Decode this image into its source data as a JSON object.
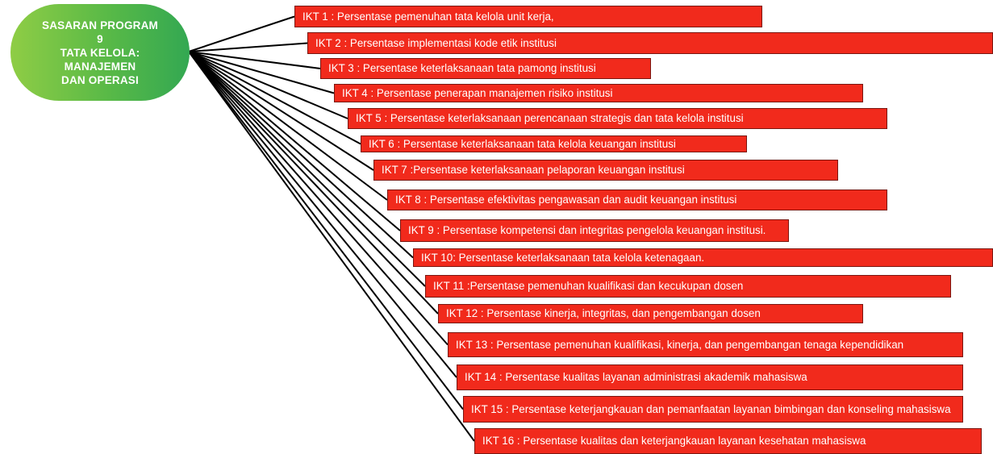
{
  "root": {
    "lines": [
      "SASARAN PROGRAM",
      "9",
      "TATA KELOLA:",
      "MANAJEMEN",
      "DAN OPERASI"
    ]
  },
  "items": [
    "IKT 1 : Persentase pemenuhan tata kelola unit kerja,",
    "IKT 2 : Persentase implementasi kode etik institusi",
    "IKT 3 : Persentase keterlaksanaan tata pamong institusi",
    "IKT 4 : Persentase penerapan manajemen risiko institusi",
    "IKT 5 : Persentase keterlaksanaan perencanaan strategis dan tata kelola institusi",
    "IKT 6 : Persentase keterlaksanaan tata kelola keuangan institusi",
    "IKT 7 :Persentase keterlaksanaan pelaporan keuangan institusi",
    "IKT 8 : Persentase efektivitas pengawasan dan audit keuangan institusi",
    "IKT 9 : Persentase kompetensi dan integritas pengelola keuangan institusi.",
    "IKT 10: Persentase keterlaksanaan tata kelola ketenagaan.",
    "IKT 11 :Persentase pemenuhan kualifikasi dan kecukupan dosen",
    "IKT 12 : Persentase kinerja, integritas, dan pengembangan dosen",
    "IKT 13 : Persentase pemenuhan kualifikasi, kinerja, dan pengembangan tenaga kependidikan",
    "IKT 14 : Persentase kualitas layanan administrasi akademik mahasiswa",
    "IKT 15 : Persentase keterjangkauan dan pemanfaatan layanan bimbingan dan konseling mahasiswa",
    "IKT 16 : Persentase kualitas dan keterjangkauan layanan kesehatan mahasiswa"
  ],
  "colors": {
    "box_fill": "#f12a1c",
    "box_border": "#7a1711",
    "connector": "#000000",
    "root_gradient": [
      "#8fcd45",
      "#33a852"
    ]
  }
}
